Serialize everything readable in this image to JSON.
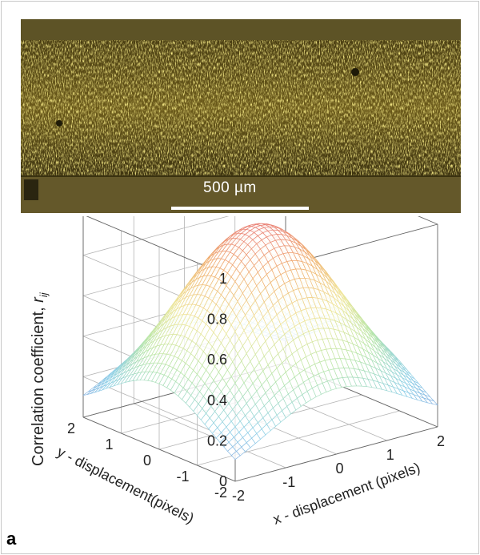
{
  "micrograph": {
    "scale_bar_label": "500 µm"
  },
  "panel_label": "a",
  "chart_data": {
    "type": "surface",
    "zlabel_main": "Correlation coefficient, ",
    "zlabel_sym": "r",
    "zlabel_sub": "ij",
    "xlabel": "x - displacement (pixels)",
    "ylabel": "y - displacement(pixels)",
    "x_ticks": [
      "-2",
      "-1",
      "0",
      "1",
      "2"
    ],
    "y_ticks": [
      "-2",
      "-1",
      "0",
      "1",
      "2"
    ],
    "z_ticks": [
      "0",
      "0.2",
      "0.4",
      "0.6",
      "0.8",
      "1"
    ],
    "xlim": [
      -2,
      2
    ],
    "ylim": [
      -2,
      2
    ],
    "zlim": [
      0,
      1
    ],
    "peak": {
      "x": 0,
      "y": 0,
      "z": 0.97
    },
    "corner_value": 0.05,
    "mesh_resolution": 41,
    "colormap": [
      "#7f8fd8",
      "#8fd0e8",
      "#b8e6a8",
      "#f0e69a",
      "#f0b070",
      "#e87a7a"
    ]
  }
}
